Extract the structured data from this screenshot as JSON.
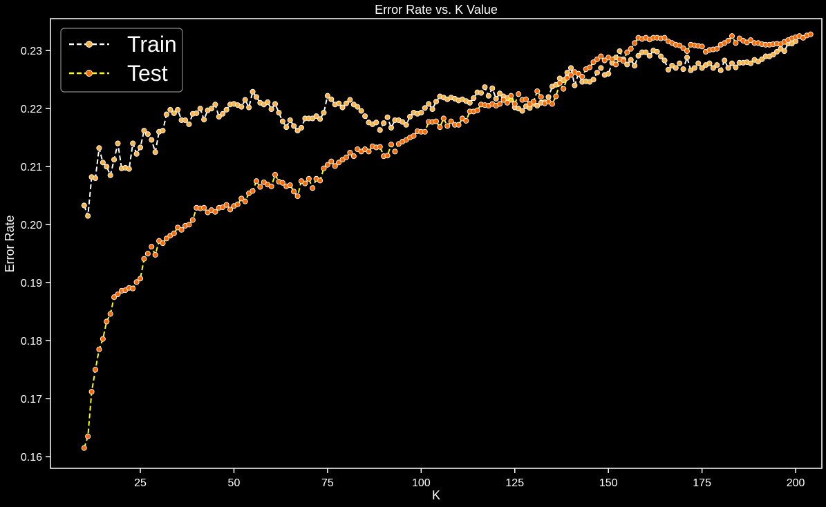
{
  "chart_data": {
    "type": "line",
    "title": "Error Rate vs. K Value",
    "xlabel": "K",
    "ylabel": "Error Rate",
    "xlim": [
      1,
      207
    ],
    "ylim": [
      0.158,
      0.2355
    ],
    "xticks": [
      25,
      50,
      75,
      100,
      125,
      150,
      175,
      200
    ],
    "yticks": [
      0.16,
      0.17,
      0.18,
      0.19,
      0.2,
      0.21,
      0.22,
      0.23
    ],
    "ytick_labels": [
      "0.16",
      "0.17",
      "0.18",
      "0.19",
      "0.20",
      "0.21",
      "0.22",
      "0.23"
    ],
    "grid": false,
    "legend_position": "top-left",
    "x_start": 10,
    "x_step": 1,
    "series": [
      {
        "name": "Train",
        "line_color": "#ffffff",
        "marker_color": "#ffb347",
        "values": [
          0.2033,
          0.2015,
          0.2082,
          0.208,
          0.2132,
          0.2107,
          0.21,
          0.2085,
          0.2112,
          0.214,
          0.2097,
          0.2098,
          0.2096,
          0.214,
          0.2122,
          0.2133,
          0.2162,
          0.2156,
          0.2146,
          0.2125,
          0.216,
          0.2162,
          0.219,
          0.2198,
          0.2192,
          0.2198,
          0.218,
          0.218,
          0.2173,
          0.2191,
          0.2192,
          0.22,
          0.2181,
          0.2197,
          0.22,
          0.2207,
          0.2186,
          0.2191,
          0.2198,
          0.2207,
          0.2208,
          0.2206,
          0.2203,
          0.2215,
          0.2202,
          0.2229,
          0.222,
          0.221,
          0.2207,
          0.2211,
          0.2199,
          0.2208,
          0.2193,
          0.2178,
          0.2168,
          0.218,
          0.217,
          0.2162,
          0.2167,
          0.2183,
          0.2183,
          0.2183,
          0.2187,
          0.2182,
          0.2193,
          0.2222,
          0.2216,
          0.2207,
          0.2209,
          0.2202,
          0.2209,
          0.2215,
          0.2207,
          0.2203,
          0.2196,
          0.2187,
          0.2176,
          0.2173,
          0.2176,
          0.2163,
          0.2175,
          0.2185,
          0.2167,
          0.218,
          0.218,
          0.2177,
          0.2172,
          0.2186,
          0.2193,
          0.2191,
          0.2193,
          0.2201,
          0.2208,
          0.2199,
          0.2212,
          0.2221,
          0.2219,
          0.2216,
          0.2219,
          0.2217,
          0.2214,
          0.2216,
          0.2213,
          0.221,
          0.2218,
          0.2228,
          0.2227,
          0.2237,
          0.2222,
          0.2235,
          0.2217,
          0.2226,
          0.2221,
          0.2218,
          0.2215,
          0.2202,
          0.22,
          0.2196,
          0.2204,
          0.2201,
          0.2208,
          0.2205,
          0.221,
          0.2211,
          0.222,
          0.2238,
          0.2241,
          0.2252,
          0.2249,
          0.2262,
          0.227,
          0.224,
          0.226,
          0.2246,
          0.2247,
          0.2246,
          0.225,
          0.2262,
          0.227,
          0.2258,
          0.226,
          0.2279,
          0.2288,
          0.2299,
          0.2285,
          0.2276,
          0.2284,
          0.2274,
          0.2291,
          0.2297,
          0.2297,
          0.2291,
          0.23,
          0.2298,
          0.229,
          0.2283,
          0.2267,
          0.2274,
          0.227,
          0.2278,
          0.2268,
          0.2288,
          0.2266,
          0.227,
          0.2278,
          0.227,
          0.2275,
          0.2278,
          0.227,
          0.2275,
          0.2266,
          0.2283,
          0.227,
          0.2278,
          0.2271,
          0.2279,
          0.2279,
          0.228,
          0.2278,
          0.2284,
          0.2281,
          0.2285,
          0.229,
          0.229,
          0.2293,
          0.2298,
          0.2303,
          0.2299,
          0.2312,
          0.2312,
          0.2316
        ]
      },
      {
        "name": "Test",
        "line_color": "#ffff00",
        "marker_color": "#ff6a00",
        "values": [
          0.1615,
          0.1635,
          0.1712,
          0.175,
          0.1785,
          0.1803,
          0.1833,
          0.1846,
          0.1875,
          0.188,
          0.1886,
          0.1887,
          0.1891,
          0.189,
          0.1901,
          0.1907,
          0.1941,
          0.195,
          0.1962,
          0.1948,
          0.1972,
          0.1968,
          0.1976,
          0.1981,
          0.1985,
          0.1995,
          0.1991,
          0.1998,
          0.2,
          0.2008,
          0.2029,
          0.2028,
          0.2029,
          0.2021,
          0.2025,
          0.2022,
          0.2029,
          0.203,
          0.2034,
          0.2026,
          0.2032,
          0.2035,
          0.2045,
          0.204,
          0.2054,
          0.2058,
          0.2075,
          0.2065,
          0.2073,
          0.2069,
          0.2066,
          0.2086,
          0.2074,
          0.2072,
          0.2066,
          0.2068,
          0.2057,
          0.2049,
          0.2075,
          0.2071,
          0.2079,
          0.2063,
          0.2079,
          0.2076,
          0.2097,
          0.2103,
          0.2109,
          0.2101,
          0.2107,
          0.2112,
          0.2116,
          0.2124,
          0.2118,
          0.213,
          0.2126,
          0.213,
          0.2126,
          0.2135,
          0.2133,
          0.2134,
          0.2118,
          0.2119,
          0.2138,
          0.2126,
          0.2139,
          0.2143,
          0.2146,
          0.215,
          0.2153,
          0.2161,
          0.216,
          0.216,
          0.2177,
          0.2177,
          0.2178,
          0.2168,
          0.2183,
          0.217,
          0.2178,
          0.2172,
          0.2172,
          0.2183,
          0.2179,
          0.2195,
          0.2195,
          0.2197,
          0.2207,
          0.2206,
          0.2205,
          0.2208,
          0.2205,
          0.2208,
          0.2215,
          0.221,
          0.2222,
          0.2208,
          0.2225,
          0.2215,
          0.2216,
          0.2208,
          0.2212,
          0.223,
          0.222,
          0.2209,
          0.2212,
          0.2208,
          0.2221,
          0.2244,
          0.2234,
          0.2253,
          0.2258,
          0.2263,
          0.226,
          0.2255,
          0.2268,
          0.2271,
          0.228,
          0.2285,
          0.229,
          0.2283,
          0.2288,
          0.2285,
          0.2276,
          0.2285,
          0.2282,
          0.2297,
          0.2303,
          0.2313,
          0.2322,
          0.232,
          0.2322,
          0.2319,
          0.2322,
          0.2322,
          0.2321,
          0.2322,
          0.2316,
          0.2313,
          0.231,
          0.2309,
          0.2304,
          0.2299,
          0.231,
          0.2309,
          0.2308,
          0.2307,
          0.2298,
          0.2301,
          0.2302,
          0.2303,
          0.231,
          0.2313,
          0.2317,
          0.2325,
          0.2313,
          0.2321,
          0.2317,
          0.2314,
          0.2318,
          0.2313,
          0.2313,
          0.2311,
          0.231,
          0.231,
          0.2311,
          0.2312,
          0.2311,
          0.2315,
          0.2318,
          0.2321,
          0.2323,
          0.2325,
          0.2322,
          0.2326,
          0.2328
        ]
      }
    ]
  }
}
